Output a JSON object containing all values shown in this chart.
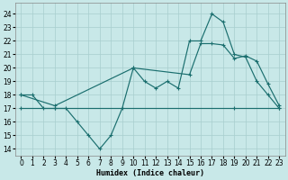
{
  "xlabel": "Humidex (Indice chaleur)",
  "bg_color": "#c8e8e8",
  "grid_color": "#a8cece",
  "line_color": "#1a6e6e",
  "xlim": [
    -0.5,
    23.5
  ],
  "ylim": [
    13.5,
    24.8
  ],
  "yticks": [
    14,
    15,
    16,
    17,
    18,
    19,
    20,
    21,
    22,
    23,
    24
  ],
  "xticks": [
    0,
    1,
    2,
    3,
    4,
    5,
    6,
    7,
    8,
    9,
    10,
    11,
    12,
    13,
    14,
    15,
    16,
    17,
    18,
    19,
    20,
    21,
    22,
    23
  ],
  "line1_x": [
    0,
    1,
    2,
    3,
    4,
    5,
    6,
    7,
    8,
    9,
    10,
    11,
    12,
    13,
    14,
    15,
    16,
    17,
    18,
    19,
    20,
    21,
    22,
    23
  ],
  "line1_y": [
    18,
    18,
    17,
    17,
    17,
    16,
    15,
    14,
    15,
    17,
    20,
    19,
    18.5,
    19,
    18.5,
    22,
    22,
    24,
    23.4,
    21,
    20.8,
    19,
    18,
    17
  ],
  "line2_x": [
    0,
    3,
    10,
    15,
    16,
    17,
    18,
    19,
    20,
    21,
    22,
    23
  ],
  "line2_y": [
    18,
    17.2,
    20,
    19.5,
    21.8,
    21.8,
    21.7,
    20.7,
    20.9,
    20.5,
    18.8,
    17.2
  ],
  "line3_x": [
    0,
    3,
    19,
    23
  ],
  "line3_y": [
    17,
    17,
    17,
    17
  ]
}
